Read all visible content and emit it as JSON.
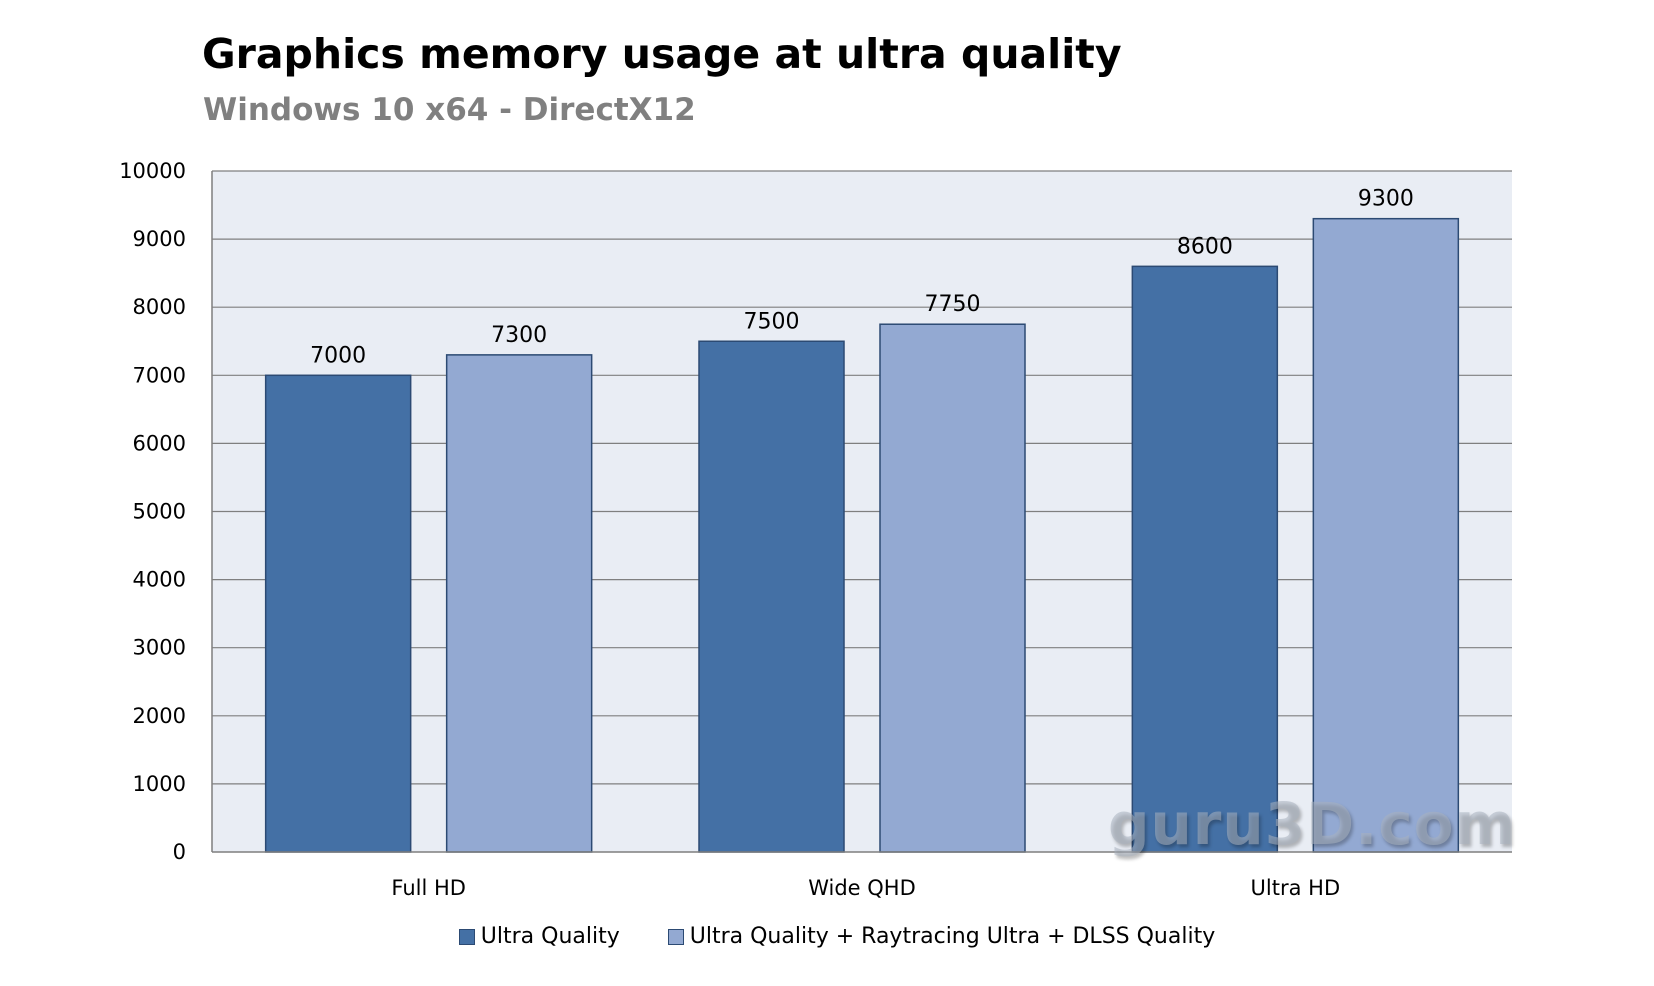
{
  "colors": {
    "plot_background": "#e9edf4",
    "gridline": "#7f7f7f",
    "axis": "#7f7f7f",
    "bar_border": "#2c4a73"
  },
  "watermark": "guru3D.com",
  "legend": [
    {
      "label": "Ultra Quality",
      "color": "#4470a5"
    },
    {
      "label": "Ultra Quality + Raytracing Ultra + DLSS Quality",
      "color": "#93a9d2"
    }
  ],
  "chart_data": {
    "type": "bar",
    "title": "Graphics memory usage at ultra quality",
    "subtitle": "Windows 10 x64 - DirectX12",
    "xlabel": "",
    "ylabel": "",
    "categories": [
      "Full HD",
      "Wide QHD",
      "Ultra HD"
    ],
    "series": [
      {
        "name": "Ultra Quality",
        "values": [
          7000,
          7500,
          8600
        ],
        "color": "#4470a5"
      },
      {
        "name": "Ultra Quality + Raytracing Ultra + DLSS Quality",
        "values": [
          7300,
          7750,
          9300
        ],
        "color": "#93a9d2"
      }
    ],
    "ylim": [
      0,
      10000
    ],
    "yticks": [
      0,
      1000,
      2000,
      3000,
      4000,
      5000,
      6000,
      7000,
      8000,
      9000,
      10000
    ],
    "grid": true,
    "data_labels": true,
    "legend_position": "bottom"
  }
}
